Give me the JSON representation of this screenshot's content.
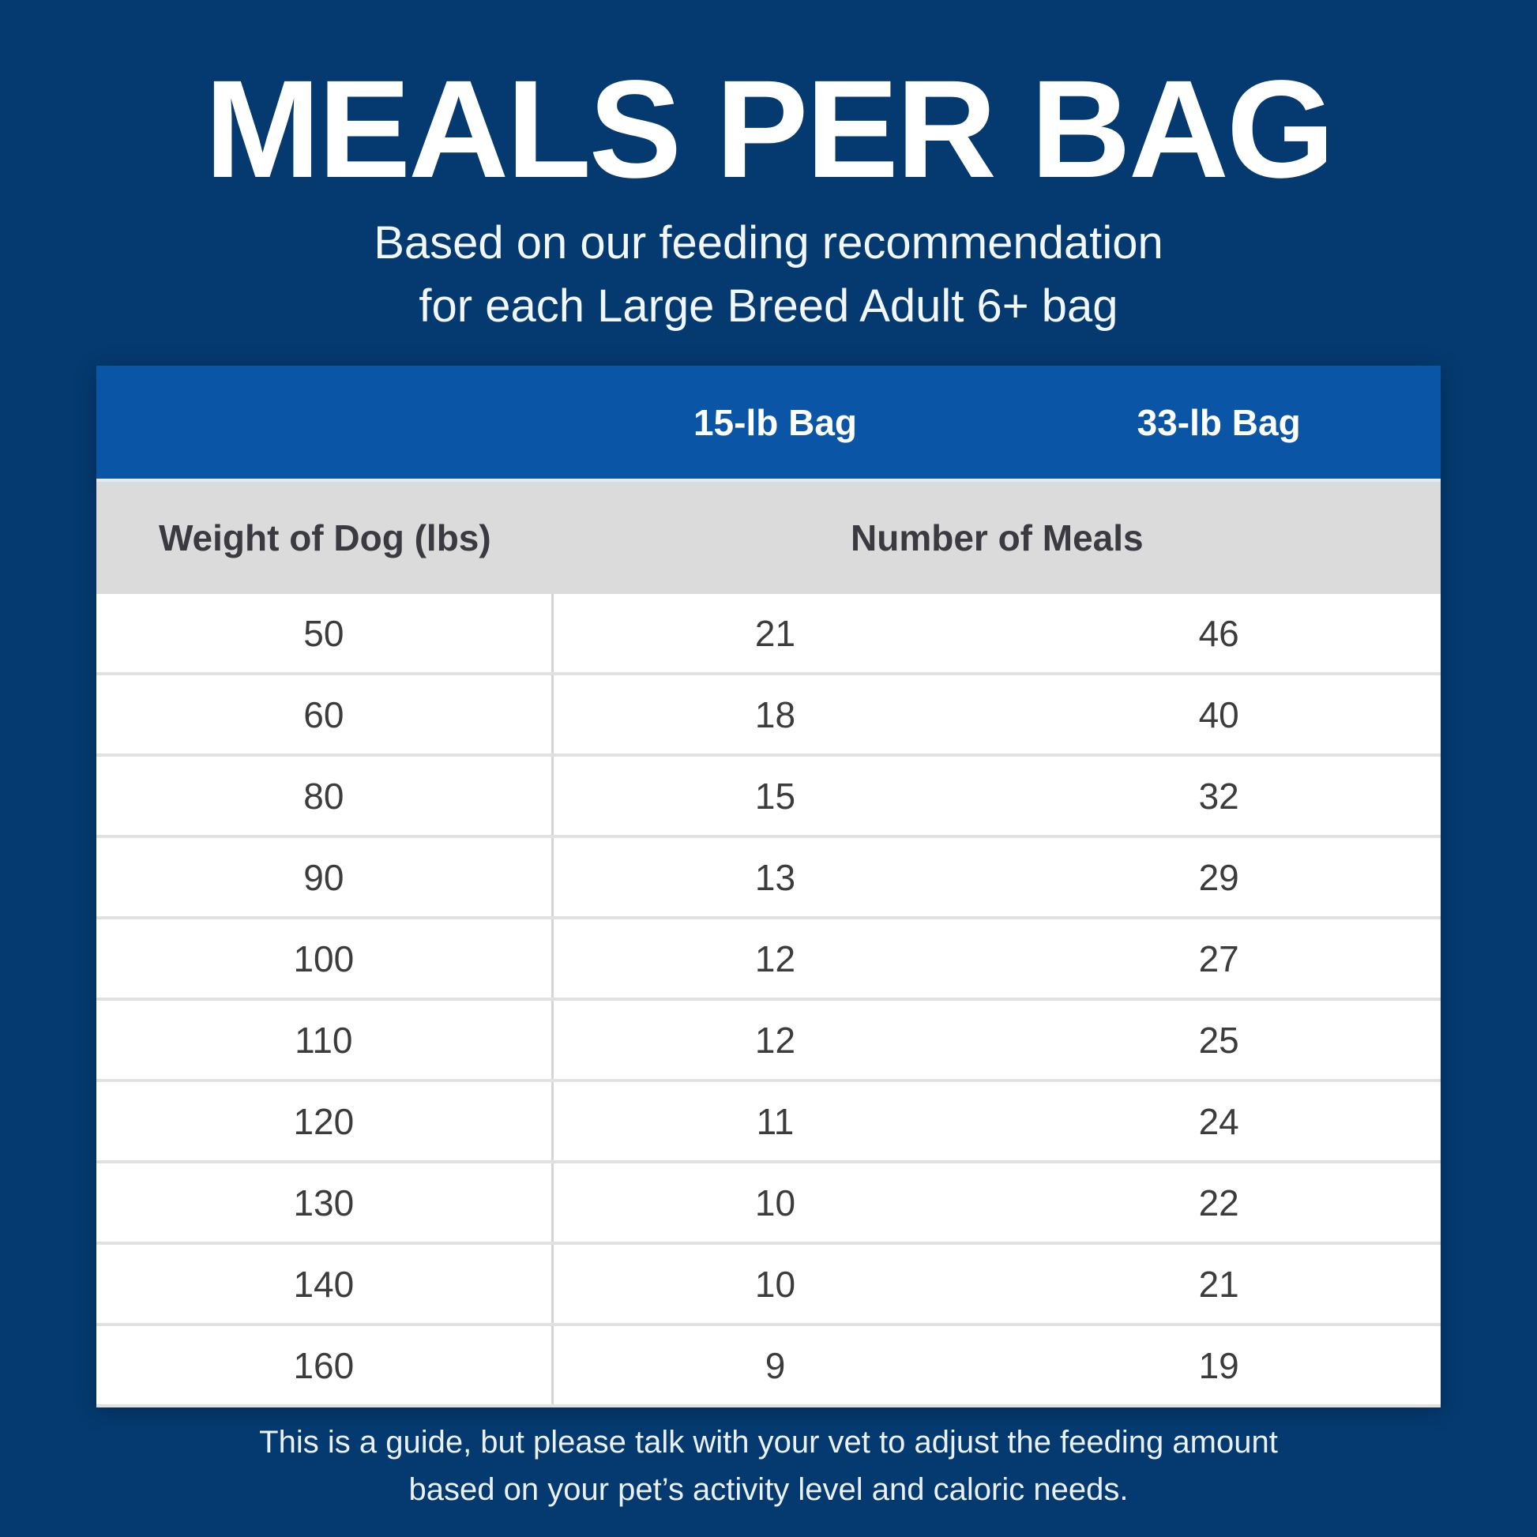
{
  "title": "MEALS PER BAG",
  "subtitle": {
    "line1": "Based on our feeding recommendation",
    "line2": "for each Large Breed Adult 6+ bag"
  },
  "table_headers": {
    "bag_15": "15-lb Bag",
    "bag_33": "33-lb Bag",
    "weight": "Weight of Dog (lbs)",
    "meals": "Number of Meals"
  },
  "chart_data": {
    "type": "table",
    "title": "MEALS PER BAG",
    "subtitle": "Based on our feeding recommendation for each Large Breed Adult 6+ bag",
    "columns": [
      "Weight of Dog (lbs)",
      "15-lb Bag (Number of Meals)",
      "33-lb Bag (Number of Meals)"
    ],
    "rows": [
      [
        50,
        21,
        46
      ],
      [
        60,
        18,
        40
      ],
      [
        80,
        15,
        32
      ],
      [
        90,
        13,
        29
      ],
      [
        100,
        12,
        27
      ],
      [
        110,
        12,
        25
      ],
      [
        120,
        11,
        24
      ],
      [
        130,
        10,
        22
      ],
      [
        140,
        10,
        21
      ],
      [
        160,
        9,
        19
      ]
    ]
  },
  "footer": {
    "line1": "This is a guide, but please talk with your vet to adjust the feeding amount",
    "line2": "based on your pet’s activity level and caloric needs."
  },
  "colors": {
    "background": "#053A70",
    "header_band": "#0A55A5",
    "subheader_band": "#DBDBDB",
    "cell_text": "#3C3C3C",
    "title_text": "#FFFFFF"
  }
}
